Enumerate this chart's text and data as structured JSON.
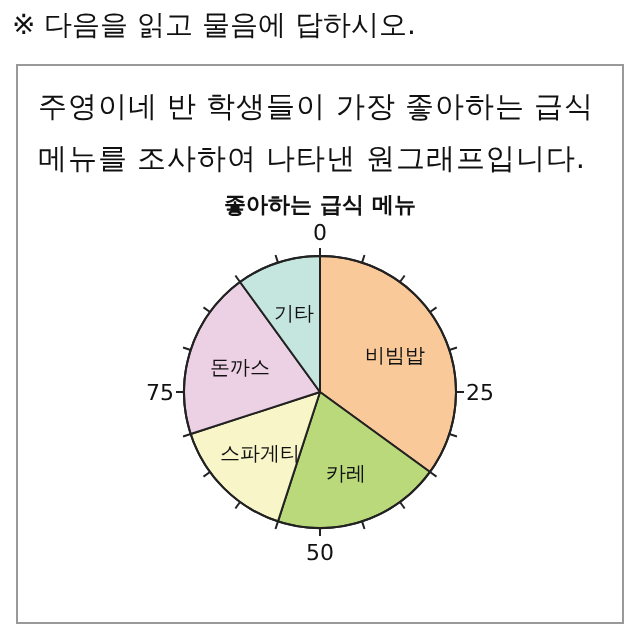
{
  "chart_data": {
    "type": "pie",
    "title": "좋아하는 급식 메뉴",
    "categories": [
      "비빔밥",
      "카레",
      "스파게티",
      "돈까스",
      "기타"
    ],
    "values": [
      35,
      20,
      15,
      20,
      10
    ],
    "colors": [
      "#f9c99a",
      "#b9d97a",
      "#f8f5c8",
      "#ecd0e4",
      "#c5e6df"
    ],
    "annotations": [
      "※ 다음을 읽고 물음에 답하시오.",
      "주영이네 반 학생들이 가장 좋아하는 급식 메뉴를 조사하여 나타낸 원그래프입니다.",
      "0",
      "25",
      "50",
      "75"
    ]
  }
}
